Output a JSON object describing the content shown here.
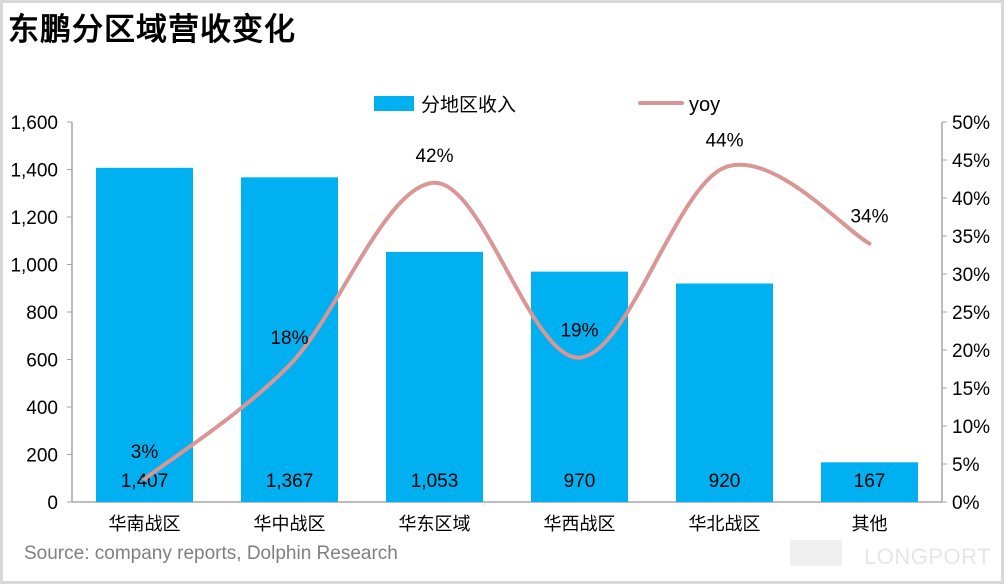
{
  "title": "东鹏分区域营收变化",
  "source": "Source: company reports, Dolphin Research",
  "watermark": "LONGPORT",
  "chart_data": {
    "type": "bar+line",
    "categories": [
      "华南战区",
      "华中战区",
      "华东区域",
      "华西战区",
      "华北战区",
      "其他"
    ],
    "series": [
      {
        "name": "分地区收入",
        "type": "bar",
        "axis": "left",
        "values": [
          1407,
          1367,
          1053,
          970,
          920,
          167
        ],
        "labels": [
          "1,407",
          "1,367",
          "1,053",
          "970",
          "920",
          "167"
        ],
        "color": "#00B0F0"
      },
      {
        "name": "yoy",
        "type": "line",
        "axis": "right",
        "values": [
          3,
          18,
          42,
          19,
          44,
          34
        ],
        "labels": [
          "3%",
          "18%",
          "42%",
          "19%",
          "44%",
          "34%"
        ],
        "color": "#D99694",
        "smooth": true
      }
    ],
    "left_axis": {
      "range": [
        0,
        1600
      ],
      "ticks": [
        "0",
        "200",
        "400",
        "600",
        "800",
        "1,000",
        "1,200",
        "1,400",
        "1,600"
      ]
    },
    "right_axis": {
      "range": [
        0,
        50
      ],
      "ticks": [
        "0%",
        "5%",
        "10%",
        "15%",
        "20%",
        "25%",
        "30%",
        "35%",
        "40%",
        "45%",
        "50%"
      ]
    },
    "legend": "top",
    "grid": false
  }
}
